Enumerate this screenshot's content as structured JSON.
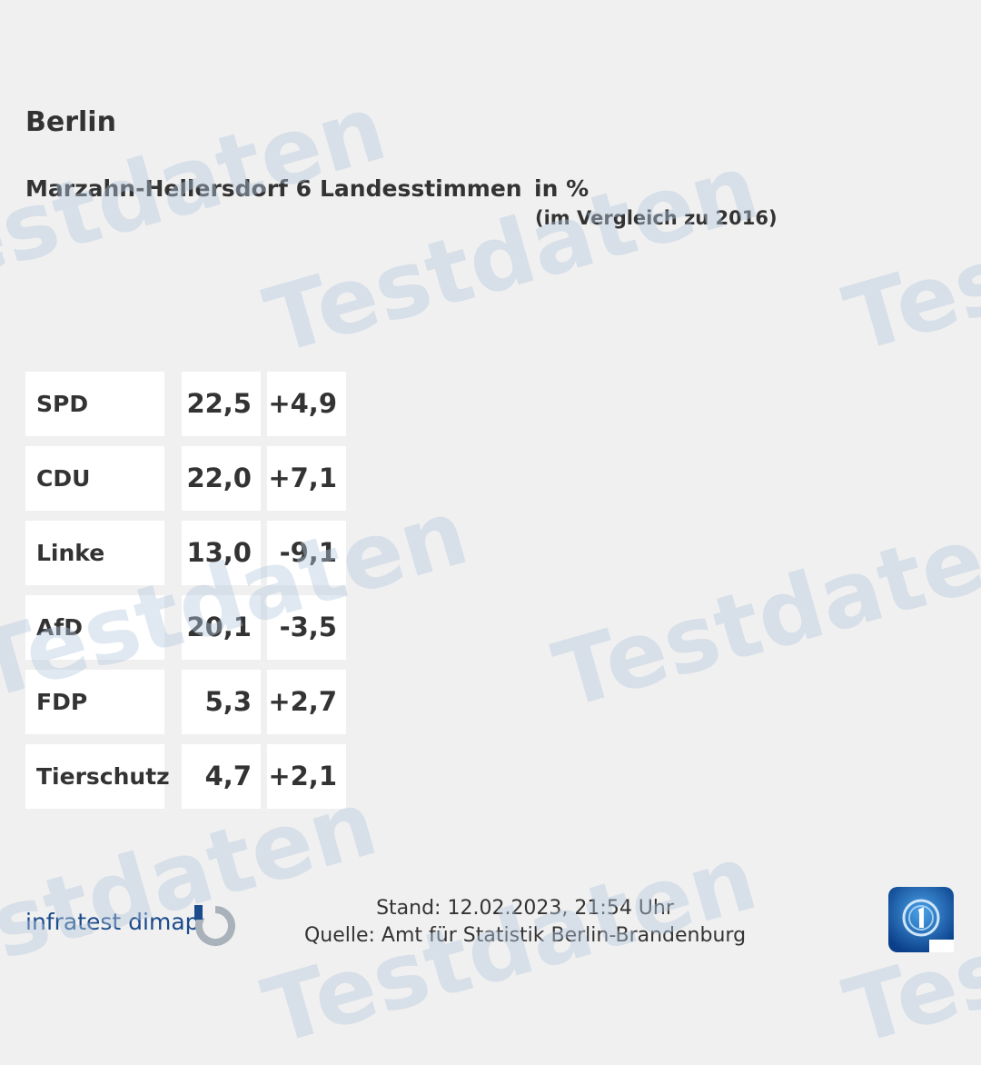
{
  "header": {
    "title": "Berlin",
    "region": "Marzahn-Hellersdorf 6",
    "vote_type": "Landesstimmen",
    "unit": "in %",
    "comparison_note": "(im Vergleich zu 2016)"
  },
  "results": [
    {
      "party": "SPD",
      "value": "22,5",
      "change": "+4,9"
    },
    {
      "party": "CDU",
      "value": "22,0",
      "change": "+7,1"
    },
    {
      "party": "Linke",
      "value": "13,0",
      "change": "-9,1"
    },
    {
      "party": "AfD",
      "value": "20,1",
      "change": "-3,5"
    },
    {
      "party": "FDP",
      "value": "5,3",
      "change": "+2,7"
    },
    {
      "party": "Tierschutz",
      "value": "4,7",
      "change": "+2,1"
    }
  ],
  "watermark": {
    "text": "Testdaten"
  },
  "footer": {
    "logo_text": "infratest dimap",
    "status": "Stand: 12.02.2023, 21:54 Uhr",
    "source": "Quelle: Amt für Statistik Berlin-Brandenburg"
  },
  "colors": {
    "background": "#f0f0f0",
    "cell": "#ffffff",
    "text": "#333333",
    "logo_blue": "#1a4b8c",
    "watermark": "#b4c8de"
  }
}
